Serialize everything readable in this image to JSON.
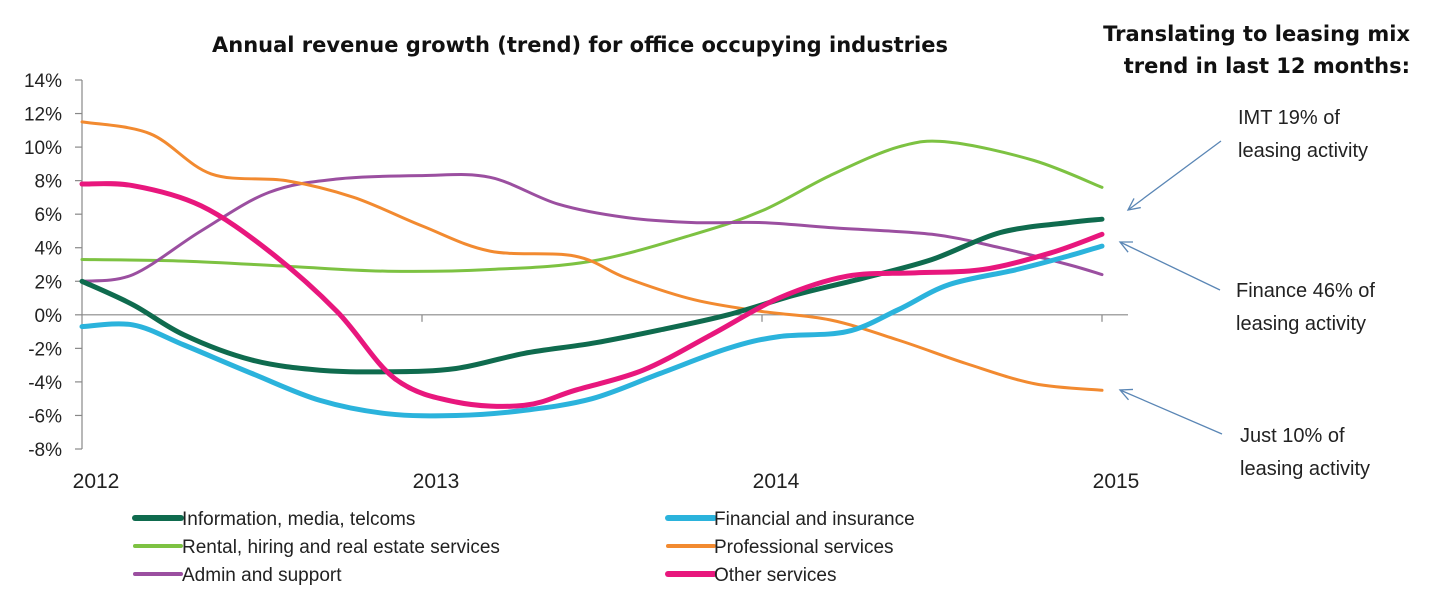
{
  "chart_data": {
    "type": "line",
    "title": "Annual revenue growth (trend) for office occupying industries",
    "xlabel": "",
    "ylabel": "",
    "xlim": [
      2012,
      2015
    ],
    "ylim": [
      -8,
      14
    ],
    "y_ticks": [
      -8,
      -6,
      -4,
      -2,
      0,
      2,
      4,
      6,
      8,
      10,
      12,
      14
    ],
    "y_tick_labels": [
      "-8%",
      "-6%",
      "-4%",
      "-2%",
      "0%",
      "2%",
      "4%",
      "6%",
      "8%",
      "10%",
      "12%",
      "14%"
    ],
    "x_ticks": [
      2012,
      2013,
      2014,
      2015
    ],
    "x_tick_labels": [
      "2012",
      "2013",
      "2014",
      "2015"
    ],
    "grid": false,
    "legend_position": "bottom",
    "series": [
      {
        "name": "Information, media, telcoms",
        "color": "#0f6b4e",
        "points": [
          [
            2012.0,
            2.0
          ],
          [
            2012.15,
            0.6
          ],
          [
            2012.3,
            -1.2
          ],
          [
            2012.5,
            -2.7
          ],
          [
            2012.7,
            -3.3
          ],
          [
            2012.9,
            -3.4
          ],
          [
            2013.1,
            -3.2
          ],
          [
            2013.3,
            -2.3
          ],
          [
            2013.5,
            -1.7
          ],
          [
            2013.7,
            -0.9
          ],
          [
            2013.9,
            0.0
          ],
          [
            2014.1,
            1.2
          ],
          [
            2014.3,
            2.2
          ],
          [
            2014.5,
            3.3
          ],
          [
            2014.7,
            4.9
          ],
          [
            2014.9,
            5.5
          ],
          [
            2015.0,
            5.7
          ]
        ]
      },
      {
        "name": "Financial and insurance",
        "color": "#2bb3dc",
        "points": [
          [
            2012.0,
            -0.7
          ],
          [
            2012.15,
            -0.6
          ],
          [
            2012.3,
            -1.8
          ],
          [
            2012.5,
            -3.5
          ],
          [
            2012.7,
            -5.1
          ],
          [
            2012.9,
            -5.9
          ],
          [
            2013.1,
            -6.0
          ],
          [
            2013.3,
            -5.7
          ],
          [
            2013.5,
            -5.0
          ],
          [
            2013.7,
            -3.5
          ],
          [
            2013.9,
            -2.0
          ],
          [
            2014.05,
            -1.3
          ],
          [
            2014.25,
            -1.0
          ],
          [
            2014.4,
            0.3
          ],
          [
            2014.55,
            1.8
          ],
          [
            2014.75,
            2.7
          ],
          [
            2014.9,
            3.5
          ],
          [
            2015.0,
            4.1
          ]
        ]
      },
      {
        "name": "Rental, hiring and real estate services",
        "color": "#7dc242",
        "points": [
          [
            2012.0,
            3.3
          ],
          [
            2012.3,
            3.2
          ],
          [
            2012.6,
            2.9
          ],
          [
            2012.9,
            2.6
          ],
          [
            2013.2,
            2.7
          ],
          [
            2013.5,
            3.2
          ],
          [
            2013.8,
            4.8
          ],
          [
            2014.0,
            6.2
          ],
          [
            2014.2,
            8.3
          ],
          [
            2014.4,
            10.0
          ],
          [
            2014.55,
            10.3
          ],
          [
            2014.8,
            9.2
          ],
          [
            2015.0,
            7.6
          ]
        ]
      },
      {
        "name": "Professional services",
        "color": "#f28a30",
        "points": [
          [
            2012.0,
            11.5
          ],
          [
            2012.2,
            10.8
          ],
          [
            2012.38,
            8.4
          ],
          [
            2012.6,
            8.0
          ],
          [
            2012.8,
            7.0
          ],
          [
            2013.0,
            5.3
          ],
          [
            2013.2,
            3.8
          ],
          [
            2013.45,
            3.5
          ],
          [
            2013.6,
            2.2
          ],
          [
            2013.8,
            0.9
          ],
          [
            2014.0,
            0.2
          ],
          [
            2014.2,
            -0.3
          ],
          [
            2014.4,
            -1.5
          ],
          [
            2014.6,
            -2.9
          ],
          [
            2014.8,
            -4.1
          ],
          [
            2015.0,
            -4.5
          ]
        ]
      },
      {
        "name": "Admin and support",
        "color": "#9b4fa0",
        "points": [
          [
            2012.0,
            2.0
          ],
          [
            2012.15,
            2.4
          ],
          [
            2012.35,
            5.0
          ],
          [
            2012.55,
            7.3
          ],
          [
            2012.75,
            8.1
          ],
          [
            2013.0,
            8.3
          ],
          [
            2013.2,
            8.2
          ],
          [
            2013.4,
            6.6
          ],
          [
            2013.6,
            5.8
          ],
          [
            2013.8,
            5.5
          ],
          [
            2014.0,
            5.5
          ],
          [
            2014.2,
            5.2
          ],
          [
            2014.5,
            4.8
          ],
          [
            2014.7,
            4.0
          ],
          [
            2014.9,
            3.0
          ],
          [
            2015.0,
            2.4
          ]
        ]
      },
      {
        "name": "Other services",
        "color": "#e8177d",
        "points": [
          [
            2012.0,
            7.8
          ],
          [
            2012.15,
            7.7
          ],
          [
            2012.35,
            6.5
          ],
          [
            2012.55,
            3.8
          ],
          [
            2012.75,
            0.2
          ],
          [
            2012.92,
            -3.8
          ],
          [
            2013.1,
            -5.2
          ],
          [
            2013.3,
            -5.4
          ],
          [
            2013.45,
            -4.5
          ],
          [
            2013.65,
            -3.3
          ],
          [
            2013.85,
            -1.2
          ],
          [
            2014.05,
            1.0
          ],
          [
            2014.25,
            2.3
          ],
          [
            2014.45,
            2.5
          ],
          [
            2014.65,
            2.7
          ],
          [
            2014.85,
            3.7
          ],
          [
            2015.0,
            4.8
          ]
        ]
      }
    ],
    "annotations": [
      {
        "lines": [
          "IMT 19% of",
          "leasing activity"
        ]
      },
      {
        "lines": [
          "Finance 46% of",
          "leasing activity"
        ]
      },
      {
        "lines": [
          "Just 10% of",
          "leasing activity"
        ]
      }
    ]
  },
  "side_heading": [
    "Translating to leasing mix",
    "trend in last 12 months:"
  ],
  "colors": {
    "axis": "#888888",
    "arrow": "#5a86b5"
  }
}
